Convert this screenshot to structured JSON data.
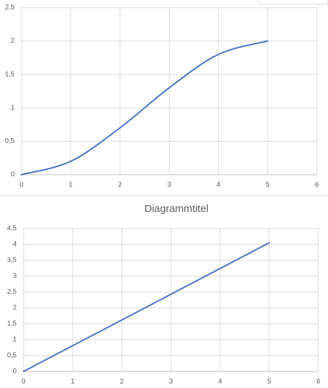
{
  "chart_data": [
    {
      "type": "line",
      "smooth": true,
      "grid": true,
      "x": [
        0,
        1,
        2,
        3,
        4,
        5
      ],
      "series": [
        {
          "color": "#4472c4",
          "values": [
            0,
            0.2,
            0.7,
            1.3,
            1.8,
            2
          ]
        }
      ],
      "xlim": [
        0,
        6
      ],
      "xticks": [
        0,
        1,
        2,
        3,
        4,
        5,
        6
      ],
      "ylim": [
        0,
        2.5
      ],
      "yticks": [
        0,
        {
          "value": 0.5,
          "label": "0,5"
        },
        1,
        {
          "value": 1.5,
          "label": "1,5"
        },
        2,
        {
          "value": 2.5,
          "label": "2,5"
        }
      ]
    },
    {
      "type": "line",
      "smooth": false,
      "grid": true,
      "title": "Diagrammtitel",
      "x": [
        0,
        1,
        2,
        3,
        4,
        5
      ],
      "series": [
        {
          "color": "#4472c4",
          "values": [
            0,
            0.81,
            1.62,
            2.43,
            3.24,
            4.05
          ]
        }
      ],
      "xlim": [
        0,
        6
      ],
      "xticks": [
        0,
        1,
        2,
        3,
        4,
        5,
        6
      ],
      "ylim": [
        0,
        4.5
      ],
      "yticks": [
        0,
        {
          "value": 0.5,
          "label": "0,5"
        },
        1,
        {
          "value": 1.5,
          "label": "1,5"
        },
        2,
        {
          "value": 2.5,
          "label": "2,5"
        },
        3,
        {
          "value": 3.5,
          "label": "3,5"
        },
        4,
        {
          "value": 4.5,
          "label": "4,5"
        }
      ]
    }
  ]
}
